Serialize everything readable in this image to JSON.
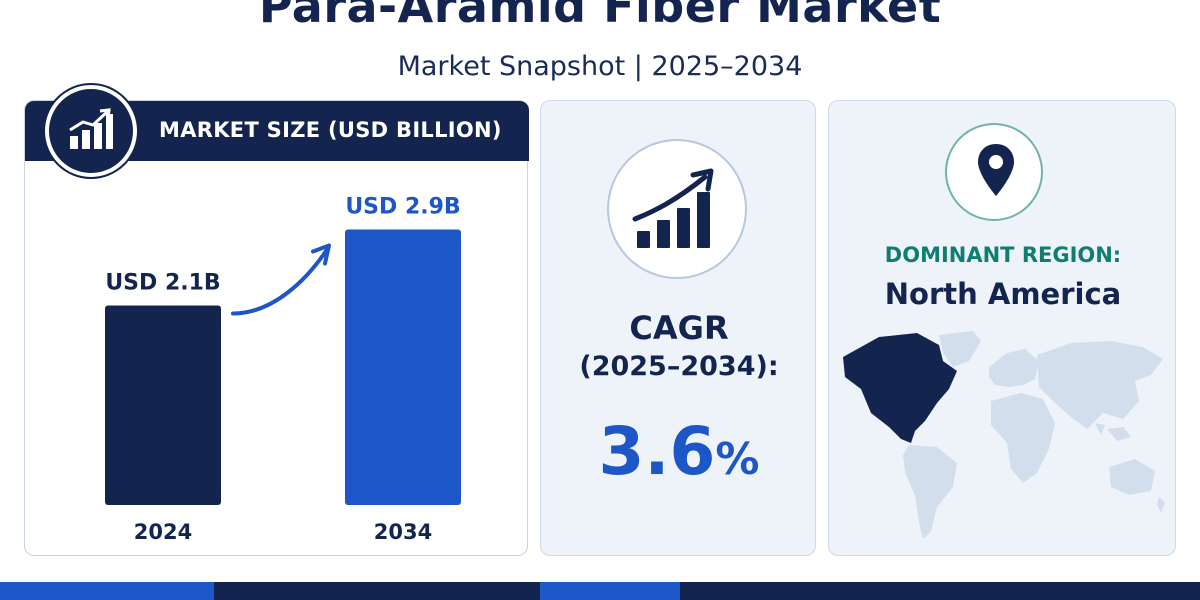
{
  "header": {
    "title": "Para-Aramid Fiber Market",
    "subtitle": "Market Snapshot | 2025–2034"
  },
  "market_size": {
    "heading": "MARKET SIZE (USD BILLION)",
    "icon": "bar-chart-growth-icon"
  },
  "cagr": {
    "label": "CAGR",
    "period": "(2025–2034):",
    "value": "3.6",
    "unit": "%",
    "icon": "trend-up-chart-icon"
  },
  "region": {
    "heading": "DOMINANT REGION:",
    "name": "North America",
    "icon": "location-pin-icon",
    "highlight": "North America"
  },
  "colors": {
    "navy": "#13254f",
    "blue": "#1d56c7",
    "teal": "#0f7d73",
    "map_base": "#d3deed"
  },
  "chart_data": {
    "type": "bar",
    "title": "MARKET SIZE (USD BILLION)",
    "categories": [
      "2024",
      "2034"
    ],
    "values": [
      2.1,
      2.9
    ],
    "data_labels": [
      "USD 2.1B",
      "USD 2.9B"
    ],
    "bar_colors": [
      "#13254f",
      "#1d56c7"
    ],
    "xlabel": "",
    "ylabel": "",
    "grid": false
  }
}
